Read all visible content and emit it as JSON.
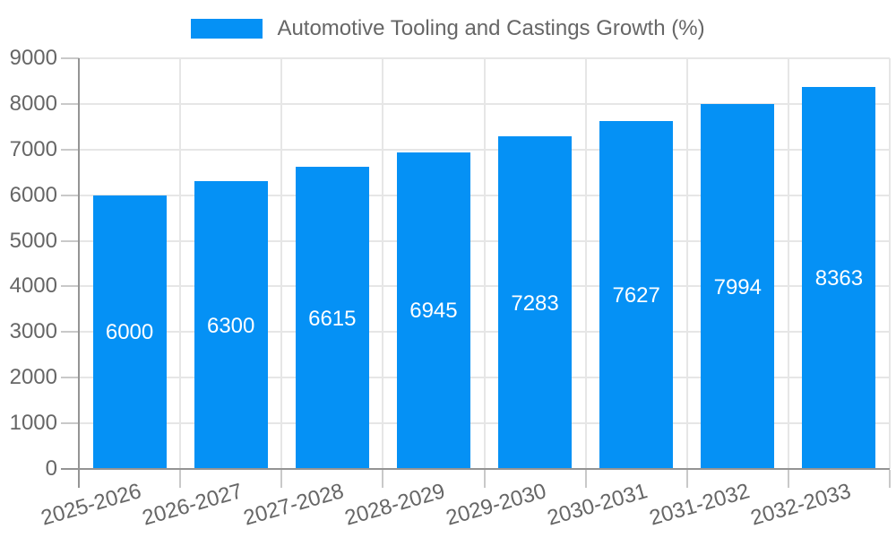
{
  "legend": {
    "label": "Automotive Tooling and Castings Growth (%)"
  },
  "chart_data": {
    "type": "bar",
    "title": "",
    "categories": [
      "2025-2026",
      "2026-2027",
      "2027-2028",
      "2028-2029",
      "2029-2030",
      "2030-2031",
      "2031-2032",
      "2032-2033"
    ],
    "series": [
      {
        "name": "Automotive Tooling and Castings Growth (%)",
        "values": [
          6000,
          6300,
          6615,
          6945,
          7283,
          7627,
          7994,
          8363
        ]
      }
    ],
    "xlabel": "",
    "ylabel": "",
    "ylim": [
      0,
      9000
    ],
    "ytick_step": 1000,
    "yticks": [
      0,
      1000,
      2000,
      3000,
      4000,
      5000,
      6000,
      7000,
      8000,
      9000
    ],
    "grid": true,
    "legend_position": "top",
    "x_label_rotation_deg": -16,
    "value_labels": "inside-center",
    "colors": {
      "bar": "#0591F5",
      "value_label": "#ffffff",
      "axis_text": "#666666",
      "grid_line": "#e6e6e6",
      "tick_mark": "#c9c9c9",
      "axis_line": "#949494",
      "background": "#ffffff"
    }
  }
}
